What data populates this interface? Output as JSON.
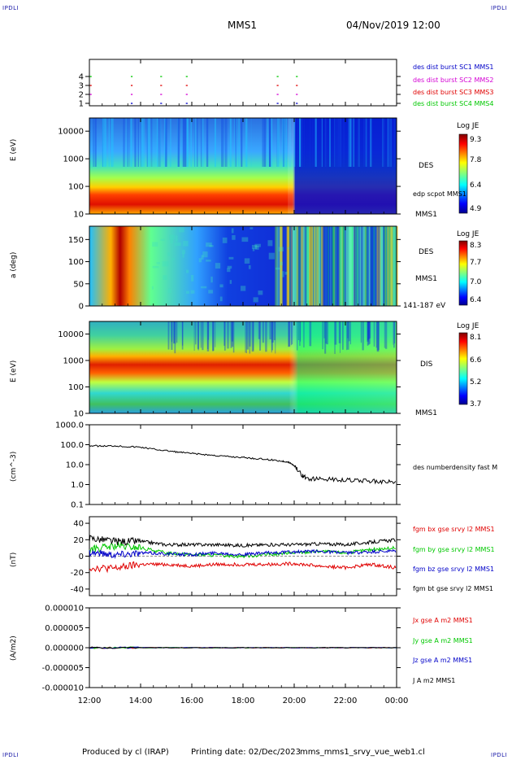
{
  "corner_text": "IPDLI",
  "header": {
    "spacecraft": "MMS1",
    "datetime": "04/Nov/2019 12:00"
  },
  "footer": {
    "produced": "Produced by cl (IRAP)",
    "printing": "Printing date: 02/Dec/2023",
    "file": "mms_mms1_srvy_vue_web1.cl"
  },
  "x_axis": {
    "ticks": [
      "12:00",
      "14:00",
      "16:00",
      "18:00",
      "20:00",
      "22:00",
      "00:00"
    ],
    "range_hours": [
      12,
      24
    ]
  },
  "colors": {
    "blue": "#0000c8",
    "magenta": "#d400d4",
    "red": "#e00000",
    "green": "#00c800",
    "black": "#000000"
  },
  "chart_data": [
    {
      "type": "scatter",
      "name": "burst-availability",
      "y_ticks": [
        "1",
        "2",
        "3",
        "4"
      ],
      "series": [
        {
          "name": "des dist burst SC1 MMS1",
          "y": 1,
          "x": [
            13.65,
            14.8,
            15.8,
            19.35,
            20.1
          ]
        },
        {
          "name": "des dist burst SC2 MMS2",
          "y": 2,
          "x": [
            12.05,
            13.65,
            14.8,
            15.8,
            19.35,
            20.1
          ]
        },
        {
          "name": "des dist burst SC3 MMS3",
          "y": 3,
          "x": [
            12.05,
            13.65,
            14.8,
            15.8,
            19.35,
            20.1
          ]
        },
        {
          "name": "des dist burst SC4 MMS4",
          "y": 4,
          "x": [
            12.05,
            13.65,
            14.8,
            15.8,
            19.35,
            20.1
          ]
        }
      ]
    },
    {
      "type": "heatmap",
      "name": "des-energy",
      "ylabel": "E (eV)",
      "y_ticks": [
        "10000",
        "1000",
        "100",
        "10"
      ],
      "ylim": [
        10,
        30000
      ],
      "right_label": "DES",
      "right_sub": "edp scpot MMS1",
      "bottom_label": "MMS1",
      "colorbar": {
        "title": "Log JE",
        "ticks": [
          "9.3",
          "7.8",
          "6.4",
          "4.9"
        ]
      }
    },
    {
      "type": "heatmap",
      "name": "des-pitch-angle",
      "ylabel": "a (deg)",
      "y_ticks": [
        "150",
        "100",
        "50",
        "0"
      ],
      "ylim": [
        0,
        180
      ],
      "right_label": "DES",
      "right_sub": "MMS1",
      "bottom_label": "141-187 eV",
      "colorbar": {
        "title": "Log JE",
        "ticks": [
          "8.3",
          "7.7",
          "7.0",
          "6.4"
        ]
      }
    },
    {
      "type": "heatmap",
      "name": "dis-energy",
      "ylabel": "E (eV)",
      "y_ticks": [
        "10000",
        "1000",
        "100",
        "10"
      ],
      "ylim": [
        10,
        30000
      ],
      "right_label": "DIS",
      "bottom_label": "MMS1",
      "colorbar": {
        "title": "Log JE",
        "ticks": [
          "8.1",
          "6.6",
          "5.2",
          "3.7"
        ]
      }
    },
    {
      "type": "line",
      "name": "density",
      "ylabel": "(cm^-3)",
      "y_ticks": [
        "1000.0",
        "100.0",
        "10.0",
        "1.0",
        "0.1"
      ],
      "ylim": [
        0.1,
        1000
      ],
      "log": true,
      "series": [
        {
          "name": "des numberdensity fast M",
          "x": [
            12.0,
            12.5,
            13.0,
            13.5,
            14.0,
            14.5,
            15.0,
            15.5,
            16.0,
            16.5,
            17.0,
            17.5,
            18.0,
            18.5,
            19.0,
            19.5,
            19.7,
            19.85,
            20.0,
            20.3,
            20.5,
            21.0,
            21.5,
            22.0,
            22.5,
            23.0,
            23.5,
            24.0
          ],
          "y": [
            90,
            85,
            88,
            80,
            75,
            60,
            50,
            42,
            36,
            32,
            28,
            25,
            23,
            20,
            18,
            15,
            14,
            12,
            9,
            3,
            2,
            1.9,
            1.8,
            1.7,
            1.6,
            1.5,
            1.4,
            1.3
          ]
        }
      ]
    },
    {
      "type": "line",
      "name": "magnetic-field",
      "ylabel": "(nT)",
      "y_ticks": [
        "40",
        "20",
        "0",
        "-20",
        "-40"
      ],
      "ylim": [
        -48,
        48
      ],
      "series": [
        {
          "name": "fgm bx gse srvy l2 MMS1",
          "x": [
            12,
            13,
            14,
            15,
            16,
            17,
            18,
            19,
            20,
            21,
            22,
            23,
            24
          ],
          "y": [
            -14,
            -15,
            -10,
            -10,
            -12,
            -10,
            -10,
            -10,
            -9,
            -12,
            -14,
            -10,
            -14
          ]
        },
        {
          "name": "fgm by gse srvy l2 MMS1",
          "x": [
            12,
            13,
            14,
            15,
            16,
            17,
            18,
            19,
            20,
            21,
            22,
            23,
            24
          ],
          "y": [
            8,
            12,
            10,
            4,
            2,
            1,
            0,
            2,
            4,
            6,
            4,
            8,
            10
          ]
        },
        {
          "name": "fgm bz gse srvy l2 MMS1",
          "x": [
            12,
            13,
            14,
            15,
            16,
            17,
            18,
            19,
            20,
            21,
            22,
            23,
            24
          ],
          "y": [
            5,
            2,
            4,
            3,
            2,
            4,
            2,
            4,
            5,
            6,
            4,
            5,
            6
          ]
        },
        {
          "name": "fgm bt gse srvy l2 MMS1",
          "x": [
            12,
            13,
            14,
            15,
            16,
            17,
            18,
            19,
            20,
            21,
            22,
            23,
            24
          ],
          "y": [
            22,
            18,
            18,
            14,
            14,
            14,
            13,
            14,
            14,
            15,
            14,
            17,
            20
          ]
        }
      ]
    },
    {
      "type": "line",
      "name": "current-density",
      "ylabel": "(A/m2)",
      "y_ticks": [
        "0.000010",
        "0.000005",
        "0.000000",
        "-0.000005",
        "-0.000010"
      ],
      "ylim": [
        -1e-05,
        1e-05
      ],
      "series": [
        {
          "name": "Jx gse A m2 MMS1",
          "x": [
            12,
            24
          ],
          "y": [
            0,
            0
          ]
        },
        {
          "name": "Jy gse A m2 MMS1",
          "x": [
            12,
            24
          ],
          "y": [
            0,
            0
          ]
        },
        {
          "name": "Jz gse A m2 MMS1",
          "x": [
            12,
            24
          ],
          "y": [
            0,
            0
          ]
        },
        {
          "name": "J A m2 MMS1",
          "x": [
            12,
            24
          ],
          "y": [
            0,
            0
          ]
        }
      ]
    }
  ]
}
